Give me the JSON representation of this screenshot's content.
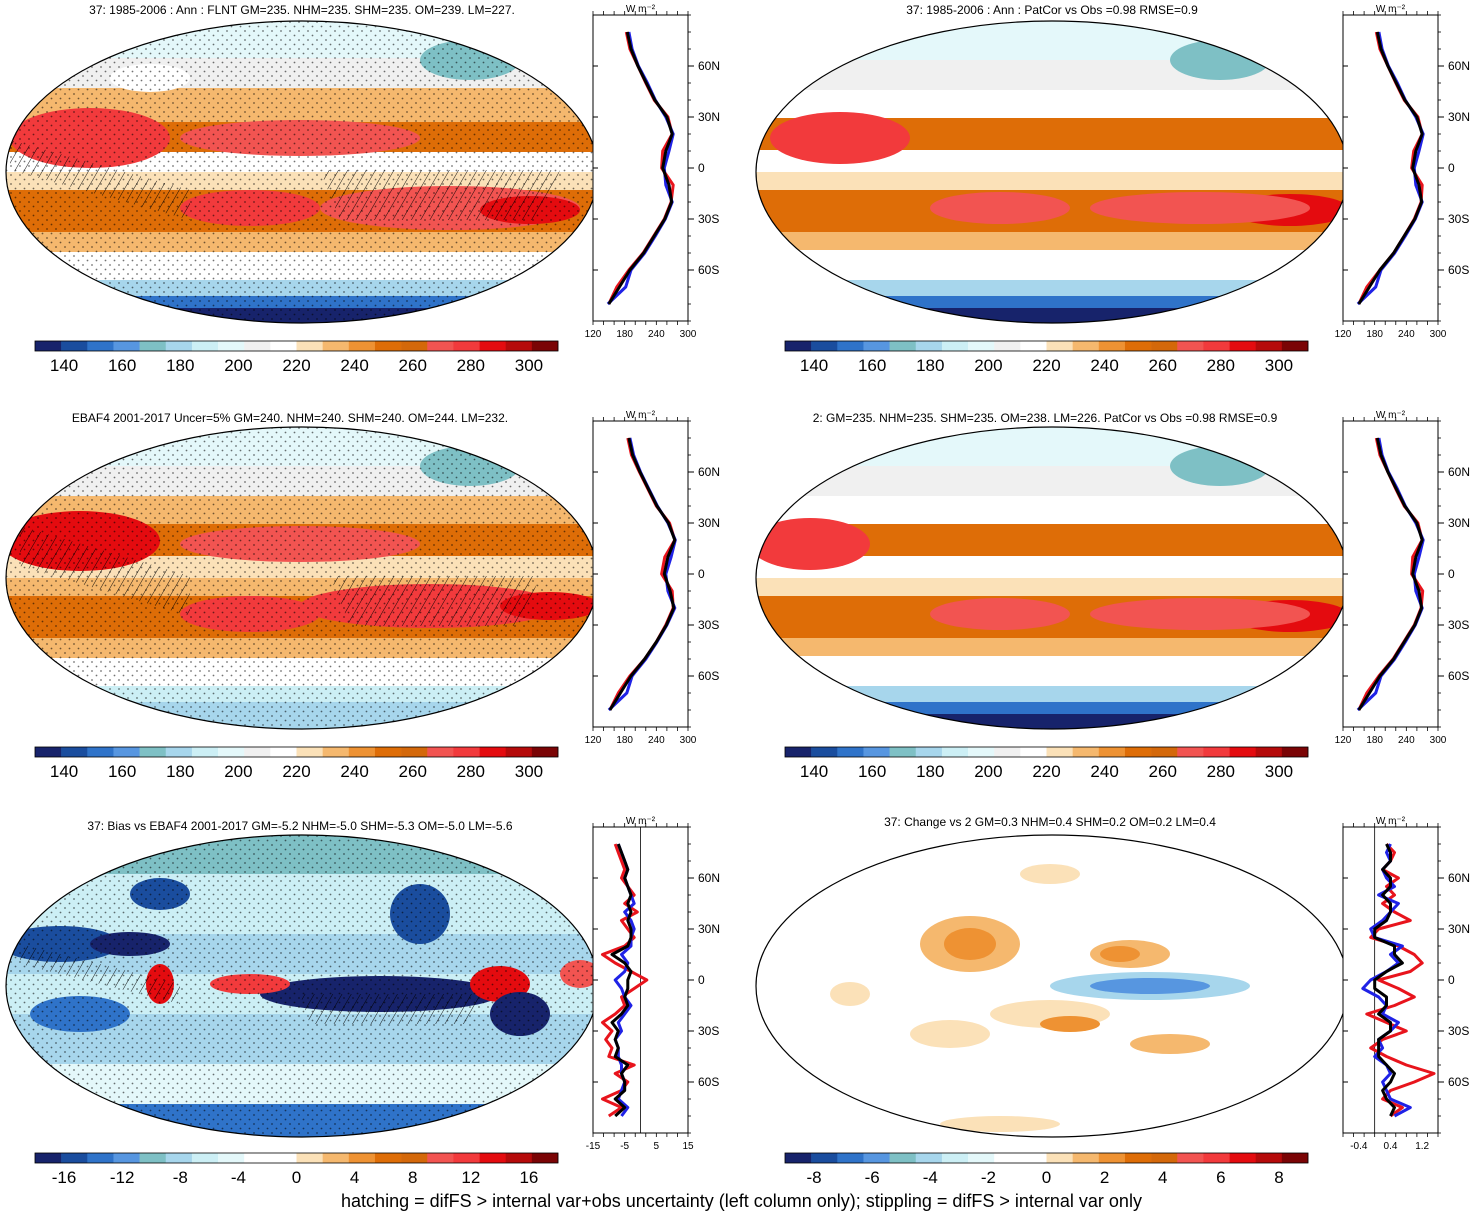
{
  "footnote": "hatching = difFS > internal var+obs uncertainty (left column only); stippling = difFS > internal var only",
  "profile_unit": "W m⁻²",
  "latitude_labels": [
    "60N",
    "30N",
    "0",
    "30S",
    "60S"
  ],
  "colors": {
    "obs_line": "#e8141c",
    "model_line": "#1f22e6",
    "ensemble_line": "#000000",
    "abs_scale": [
      "#17236b",
      "#1a4d9e",
      "#2f73c9",
      "#5796e0",
      "#7ec0c5",
      "#a7d6ec",
      "#cceff5",
      "#e4f8fa",
      "#f0f0f0",
      "#ffffff",
      "#fbe1b8",
      "#f5b86e",
      "#ee9233",
      "#de6d07",
      "#d4680a",
      "#f25451",
      "#f23a3c",
      "#e40b0f",
      "#b50a0a",
      "#7a0405"
    ],
    "bias_scale": [
      "#17236b",
      "#1a4d9e",
      "#2f73c9",
      "#5796e0",
      "#7ec0c5",
      "#a7d6ec",
      "#cceff5",
      "#e4f8fa",
      "#ffffff",
      "#ffffff",
      "#fbe1b8",
      "#f5b86e",
      "#ee9233",
      "#de6d07",
      "#d4680a",
      "#f25451",
      "#f23a3c",
      "#e40b0f",
      "#b50a0a",
      "#7a0405"
    ]
  },
  "chart_data": [
    {
      "id": "p1",
      "type": "heatmap",
      "title": "37: 1985-2006 : Ann : FLNT GM=235. NHM=235. SHM=235. OM=239. LM=227.",
      "colorbar": {
        "min": 130,
        "max": 310,
        "ticks": [
          "140",
          "160",
          "180",
          "200",
          "220",
          "240",
          "260",
          "280",
          "300"
        ],
        "tick_values": [
          140,
          160,
          180,
          200,
          220,
          240,
          260,
          280,
          300
        ]
      },
      "profile": {
        "xlim": [
          120,
          300
        ],
        "ticks": [
          "120",
          "180",
          "240",
          "300"
        ],
        "tick_values": [
          120,
          180,
          240,
          300
        ],
        "lat": [
          -80,
          -70,
          -60,
          -50,
          -40,
          -30,
          -20,
          -10,
          0,
          10,
          20,
          30,
          40,
          50,
          60,
          70,
          80
        ],
        "series": [
          {
            "values": [
              150,
              165,
              188,
              215,
              235,
              255,
              268,
              272,
              250,
              252,
              270,
              262,
              236,
              220,
              205,
              190,
              183
            ]
          },
          {
            "values": [
              148,
              182,
              192,
              218,
              238,
              257,
              270,
              258,
              255,
              264,
              272,
              258,
              238,
              223,
              206,
              194,
              188
            ]
          },
          {
            "values": [
              150,
              170,
              190,
              216,
              236,
              256,
              269,
              264,
              252,
              258,
              270,
              260,
              237,
              221,
              205,
              192,
              185
            ]
          }
        ]
      }
    },
    {
      "id": "p2",
      "type": "heatmap",
      "title": "37: 1985-2006 : Ann : PatCor vs Obs =0.98 RMSE=0.9",
      "colorbar": {
        "min": 130,
        "max": 310,
        "ticks": [
          "140",
          "160",
          "180",
          "200",
          "220",
          "240",
          "260",
          "280",
          "300"
        ],
        "tick_values": [
          140,
          160,
          180,
          200,
          220,
          240,
          260,
          280,
          300
        ]
      },
      "profile": {
        "xlim": [
          120,
          300
        ],
        "ticks": [
          "120",
          "180",
          "240",
          "300"
        ],
        "tick_values": [
          120,
          180,
          240,
          300
        ],
        "lat": [
          -80,
          -70,
          -60,
          -50,
          -40,
          -30,
          -20,
          -10,
          0,
          10,
          20,
          30,
          40,
          50,
          60,
          70,
          80
        ],
        "series": [
          {
            "values": [
              150,
              165,
              190,
              216,
              236,
              255,
              268,
              270,
              250,
              254,
              270,
              262,
              236,
              220,
              205,
              190,
              183
            ]
          },
          {
            "values": [
              148,
              182,
              192,
              218,
              238,
              257,
              270,
              258,
              255,
              264,
              272,
              258,
              238,
              223,
              206,
              194,
              188
            ]
          },
          {
            "values": [
              150,
              170,
              190,
              216,
              236,
              256,
              269,
              264,
              252,
              258,
              270,
              260,
              237,
              221,
              205,
              192,
              185
            ]
          }
        ]
      }
    },
    {
      "id": "p3",
      "type": "heatmap",
      "title": "EBAF4 2001-2017 Uncer=5% GM=240. NHM=240. SHM=240. OM=244. LM=232.",
      "colorbar": {
        "min": 130,
        "max": 310,
        "ticks": [
          "140",
          "160",
          "180",
          "200",
          "220",
          "240",
          "260",
          "280",
          "300"
        ],
        "tick_values": [
          140,
          160,
          180,
          200,
          220,
          240,
          260,
          280,
          300
        ]
      },
      "profile": {
        "xlim": [
          120,
          300
        ],
        "ticks": [
          "120",
          "180",
          "240",
          "300"
        ],
        "tick_values": [
          120,
          180,
          240,
          300
        ],
        "lat": [
          -80,
          -70,
          -60,
          -50,
          -40,
          -30,
          -20,
          -10,
          0,
          10,
          20,
          30,
          40,
          50,
          60,
          70,
          80
        ],
        "series": [
          {
            "values": [
              152,
              168,
              190,
              218,
              240,
              258,
              272,
              270,
              250,
              256,
              275,
              265,
              240,
              224,
              208,
              193,
              186
            ]
          },
          {
            "values": [
              150,
              184,
              194,
              220,
              241,
              260,
              275,
              262,
              258,
              268,
              276,
              262,
              242,
              226,
              210,
              197,
              190
            ]
          },
          {
            "values": [
              152,
              172,
              192,
              218,
              240,
              259,
              273,
              266,
              255,
              262,
              275,
              263,
              241,
              225,
              209,
              195,
              188
            ]
          }
        ]
      }
    },
    {
      "id": "p4",
      "type": "heatmap",
      "title": "2: GM=235. NHM=235. SHM=235. OM=238. LM=226. PatCor vs Obs =0.98 RMSE=0.9",
      "colorbar": {
        "min": 130,
        "max": 310,
        "ticks": [
          "140",
          "160",
          "180",
          "200",
          "220",
          "240",
          "260",
          "280",
          "300"
        ],
        "tick_values": [
          140,
          160,
          180,
          200,
          220,
          240,
          260,
          280,
          300
        ]
      },
      "profile": {
        "xlim": [
          120,
          300
        ],
        "ticks": [
          "120",
          "180",
          "240",
          "300"
        ],
        "tick_values": [
          120,
          180,
          240,
          300
        ],
        "lat": [
          -80,
          -70,
          -60,
          -50,
          -40,
          -30,
          -20,
          -10,
          0,
          10,
          20,
          30,
          40,
          50,
          60,
          70,
          80
        ],
        "series": [
          {
            "values": [
              150,
              165,
              188,
              215,
              235,
              255,
              268,
              271,
              250,
              252,
              270,
              262,
              236,
              220,
              205,
              190,
              183
            ]
          },
          {
            "values": [
              148,
              182,
              192,
              218,
              238,
              257,
              270,
              258,
              255,
              264,
              272,
              258,
              238,
              223,
              206,
              194,
              188
            ]
          },
          {
            "values": [
              150,
              170,
              190,
              216,
              236,
              256,
              269,
              264,
              252,
              258,
              270,
              260,
              237,
              221,
              205,
              192,
              185
            ]
          }
        ]
      }
    },
    {
      "id": "p5",
      "type": "heatmap",
      "title": "37: Bias vs EBAF4 2001-2017 GM=-5.2 NHM=-5.0 SHM=-5.3 OM=-5.0 LM=-5.6",
      "colorbar": {
        "min": -18,
        "max": 18,
        "ticks": [
          "-16",
          "-12",
          "-8",
          "-4",
          "0",
          "4",
          "8",
          "12",
          "16"
        ],
        "tick_values": [
          -16,
          -12,
          -8,
          -4,
          0,
          4,
          8,
          12,
          16
        ]
      },
      "profile": {
        "xlim": [
          -15,
          15
        ],
        "ticks": [
          "-15",
          "-5",
          "5",
          "15"
        ],
        "tick_values": [
          -15,
          -5,
          5,
          15
        ],
        "zero_line": 0,
        "lat": [
          -80,
          -75,
          -70,
          -65,
          -60,
          -55,
          -50,
          -45,
          -40,
          -35,
          -30,
          -25,
          -20,
          -15,
          -10,
          -5,
          0,
          5,
          10,
          15,
          20,
          25,
          30,
          35,
          40,
          45,
          50,
          55,
          60,
          65,
          70,
          75,
          80
        ],
        "series": [
          {
            "values": [
              -10,
              -6,
              -12,
              -6,
              -4,
              -8,
              -2,
              -10,
              -9,
              -11,
              -9,
              -12,
              -8,
              -5,
              -6,
              -2,
              2,
              -3,
              -8,
              -12,
              -5,
              -2,
              -4,
              -6,
              -1,
              -5,
              -2,
              -4,
              -6,
              -5,
              -6,
              -7,
              -8
            ]
          },
          {
            "values": [
              -6,
              -4,
              -7,
              -6,
              -5,
              -6,
              -6,
              -7,
              -7,
              -8,
              -6,
              -7,
              -5,
              -3,
              -5,
              -6,
              -8,
              -5,
              -4,
              -6,
              -3,
              -3,
              -2,
              -3,
              -5,
              -2,
              -3,
              -4,
              -5,
              -4,
              -5,
              -6,
              -7
            ]
          },
          {
            "values": [
              -8,
              -5,
              -8,
              -5,
              -5,
              -6,
              -4,
              -8,
              -7,
              -8,
              -7,
              -9,
              -6,
              -4,
              -5,
              -4,
              -4,
              -3,
              -5,
              -9,
              -4,
              -3,
              -3,
              -4,
              -3,
              -4,
              -3,
              -4,
              -5,
              -4,
              -5,
              -6,
              -7
            ]
          }
        ]
      }
    },
    {
      "id": "p6",
      "type": "heatmap",
      "title": "37: Change vs 2 GM=0.3 NHM=0.4 SHM=0.2 OM=0.2 LM=0.4",
      "colorbar": {
        "min": -9,
        "max": 9,
        "ticks": [
          "-8",
          "-6",
          "-4",
          "-2",
          "0",
          "2",
          "4",
          "6",
          "8"
        ],
        "tick_values": [
          -8,
          -6,
          -4,
          -2,
          0,
          2,
          4,
          6,
          8
        ]
      },
      "profile": {
        "xlim": [
          -0.8,
          1.6
        ],
        "ticks": [
          "-0.4",
          "0.4",
          "1.2"
        ],
        "tick_values": [
          -0.4,
          0.4,
          1.2
        ],
        "zero_line": 0,
        "lat": [
          -80,
          -75,
          -70,
          -65,
          -60,
          -55,
          -50,
          -45,
          -40,
          -35,
          -30,
          -25,
          -20,
          -15,
          -10,
          -5,
          0,
          5,
          10,
          15,
          20,
          25,
          30,
          35,
          40,
          45,
          50,
          55,
          60,
          65,
          70,
          75,
          80
        ],
        "series": [
          {
            "values": [
              0.4,
              0.7,
              0.2,
              0.4,
              1.0,
              1.5,
              0.8,
              0.3,
              -0.1,
              0.2,
              0.8,
              0.3,
              -0.2,
              0.5,
              1.0,
              0.6,
              0.1,
              0.9,
              1.2,
              1.0,
              0.6,
              -0.1,
              0.1,
              0.9,
              0.5,
              0.2,
              0.5,
              0.3,
              0.6,
              0.2,
              0.4,
              0.5,
              0.3
            ]
          },
          {
            "values": [
              0.5,
              0.9,
              0.4,
              0.3,
              0.2,
              0.4,
              0.3,
              0.0,
              0.2,
              0.1,
              0.4,
              0.6,
              0.2,
              0.3,
              0.1,
              -0.3,
              -0.1,
              0.3,
              0.6,
              0.4,
              0.7,
              0.0,
              -0.1,
              0.2,
              0.4,
              0.6,
              0.1,
              0.5,
              0.3,
              0.2,
              0.4,
              0.3,
              0.4
            ]
          },
          {
            "values": [
              0.4,
              0.5,
              0.3,
              0.2,
              0.4,
              0.5,
              0.3,
              0.1,
              0.1,
              0.1,
              0.4,
              0.4,
              0.1,
              0.3,
              0.3,
              0.0,
              0.0,
              0.3,
              0.7,
              0.5,
              0.5,
              0.0,
              0.0,
              0.3,
              0.4,
              0.4,
              0.2,
              0.4,
              0.4,
              0.2,
              0.4,
              0.4,
              0.3
            ]
          }
        ]
      }
    }
  ]
}
